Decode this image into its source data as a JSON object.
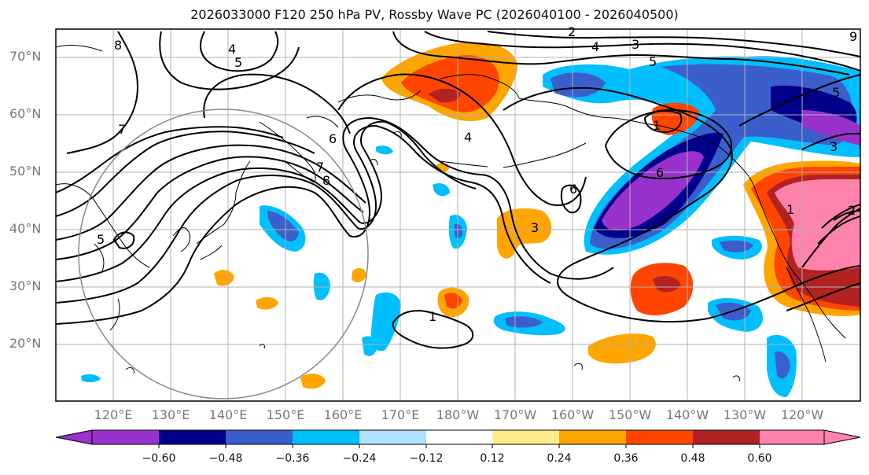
{
  "title": "2026033000 F120 250 hPa PV, Rossby Wave PC (2026040100 - 2026040500)",
  "lat_labels": [
    "70°N",
    "60°N",
    "50°N",
    "40°N",
    "30°N",
    "20°N"
  ],
  "lon_labels": [
    "120°E",
    "130°E",
    "140°E",
    "150°E",
    "160°E",
    "170°E",
    "180°W",
    "170°W",
    "160°W",
    "150°W",
    "140°W",
    "130°W",
    "120°W"
  ],
  "contour_labels": [
    "8",
    "4",
    "5",
    "3",
    "4",
    "5",
    "2",
    "9",
    "5",
    "6",
    "4",
    "7",
    "8",
    "6",
    "7",
    "1",
    "6",
    "3",
    "2",
    "5",
    "3",
    "1",
    "1"
  ],
  "colorbar": {
    "ticks": [
      "−0.60",
      "−0.48",
      "−0.36",
      "−0.24",
      "−0.12",
      "0.12",
      "0.24",
      "0.36",
      "0.48",
      "0.60"
    ],
    "colors": [
      "#9932cc",
      "#00008b",
      "#3a5fcd",
      "#00bfff",
      "#b0e2ff",
      "#ffffff",
      "#ffec8b",
      "#ffa500",
      "#ff4500",
      "#b22222",
      "#ff82ab"
    ]
  },
  "colors": {
    "contour": "#000000",
    "grid": "#b0b0b0",
    "circle": "#888888"
  }
}
